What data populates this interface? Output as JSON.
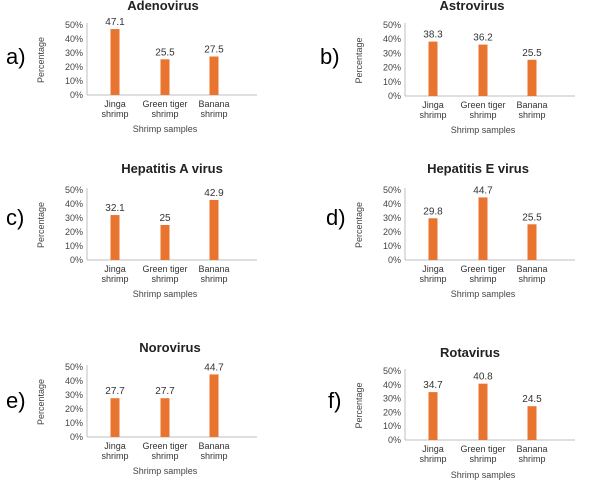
{
  "chart_data": [
    {
      "panel": "a)",
      "type": "bar",
      "title": "Adenovirus",
      "categories": [
        [
          "Jinga",
          "shrimp"
        ],
        [
          "Green tiger",
          "shrimp"
        ],
        [
          "Banana",
          "shrimp"
        ]
      ],
      "values": [
        47.1,
        25.5,
        27.5
      ],
      "value_labels": [
        "47.1",
        "25.5",
        "27.5"
      ],
      "ylabel": "Percentage",
      "xlabel": "Shrimp samples",
      "ylim": [
        0,
        50
      ],
      "yticks": [
        "0%",
        "10%",
        "20%",
        "30%",
        "40%",
        "50%"
      ],
      "grid": false,
      "bar_color": "#E8742F"
    },
    {
      "panel": "b)",
      "type": "bar",
      "title": "Astrovirus",
      "categories": [
        [
          "Jinga",
          "shrimp"
        ],
        [
          "Green tiger",
          "shrimp"
        ],
        [
          "Banana",
          "shrimp"
        ]
      ],
      "values": [
        38.3,
        36.2,
        25.5
      ],
      "value_labels": [
        "38.3",
        "36.2",
        "25.5"
      ],
      "ylabel": "Percentage",
      "xlabel": "Shrimp samples",
      "ylim": [
        0,
        50
      ],
      "yticks": [
        "0%",
        "10%",
        "20%",
        "30%",
        "40%",
        "50%"
      ],
      "grid": false,
      "bar_color": "#E8742F"
    },
    {
      "panel": "c)",
      "type": "bar",
      "title": "Hepatitis A virus",
      "categories": [
        [
          "Jinga",
          "shrimp"
        ],
        [
          "Green tiger",
          "shrimp"
        ],
        [
          "Banana",
          "shrimp"
        ]
      ],
      "values": [
        32.1,
        25,
        42.9
      ],
      "value_labels": [
        "32.1",
        "25",
        "42.9"
      ],
      "ylabel": "Percentage",
      "xlabel": "Shrimp samples",
      "ylim": [
        0,
        50
      ],
      "yticks": [
        "0%",
        "10%",
        "20%",
        "30%",
        "40%",
        "50%"
      ],
      "grid": false,
      "bar_color": "#E8742F"
    },
    {
      "panel": "d)",
      "type": "bar",
      "title": "Hepatitis E virus",
      "categories": [
        [
          "Jinga",
          "shrimp"
        ],
        [
          "Green tiger",
          "shrimp"
        ],
        [
          "Banana",
          "shrimp"
        ]
      ],
      "values": [
        29.8,
        44.7,
        25.5
      ],
      "value_labels": [
        "29.8",
        "44.7",
        "25.5"
      ],
      "ylabel": "Percentage",
      "xlabel": "Shrimp samples",
      "ylim": [
        0,
        50
      ],
      "yticks": [
        "0%",
        "10%",
        "20%",
        "30%",
        "40%",
        "50%"
      ],
      "grid": false,
      "bar_color": "#E8742F"
    },
    {
      "panel": "e)",
      "type": "bar",
      "title": "Norovirus",
      "categories": [
        [
          "Jinga",
          "shrimp"
        ],
        [
          "Green tiger",
          "shrimp"
        ],
        [
          "Banana",
          "shrimp"
        ]
      ],
      "values": [
        27.7,
        27.7,
        44.7
      ],
      "value_labels": [
        "27.7",
        "27.7",
        "44.7"
      ],
      "ylabel": "Percentage",
      "xlabel": "Shrimp samples",
      "ylim": [
        0,
        50
      ],
      "yticks": [
        "0%",
        "10%",
        "20%",
        "30%",
        "40%",
        "50%"
      ],
      "grid": false,
      "bar_color": "#E8742F"
    },
    {
      "panel": "f)",
      "type": "bar",
      "title": "Rotavirus",
      "categories": [
        [
          "Jinga",
          "shrimp"
        ],
        [
          "Green tiger",
          "shrimp"
        ],
        [
          "Banana",
          "shrimp"
        ]
      ],
      "values": [
        34.7,
        40.8,
        24.5
      ],
      "value_labels": [
        "34.7",
        "40.8",
        "24.5"
      ],
      "ylabel": "Percentage",
      "xlabel": "Shrimp samples",
      "ylim": [
        0,
        50
      ],
      "yticks": [
        "0%",
        "10%",
        "20%",
        "30%",
        "40%",
        "50%"
      ],
      "grid": false,
      "bar_color": "#E8742F"
    }
  ]
}
